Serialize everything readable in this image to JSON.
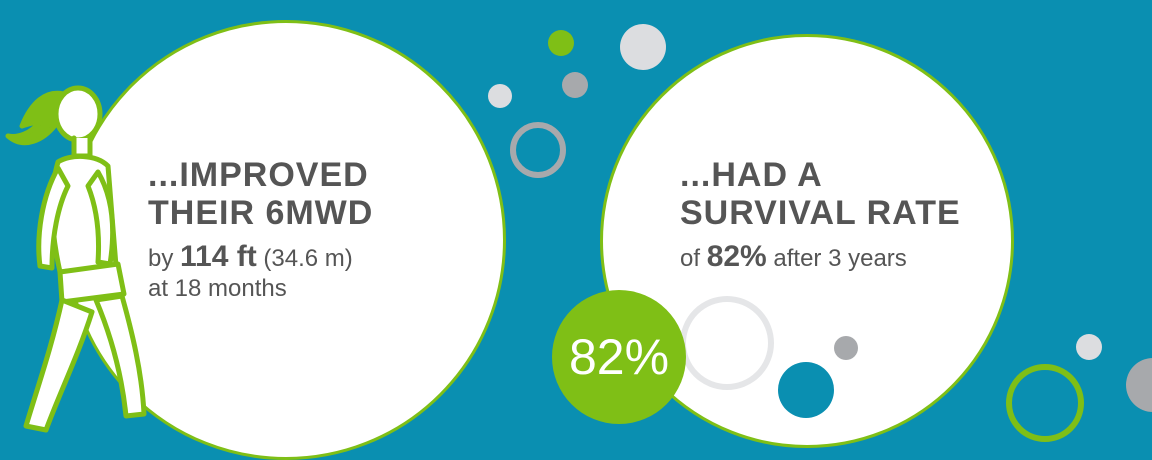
{
  "colors": {
    "background": "#0a8fb1",
    "accent_green": "#7fbf16",
    "bubble": "#ffffff",
    "text": "#555555",
    "grey_dot": "#a7a9ac",
    "light_grey_dot": "#dcdde0"
  },
  "left_card": {
    "heading_line1": "...IMPROVED",
    "heading_line2": "THEIR 6MWD",
    "sub_prefix": "by ",
    "sub_value": "114 ft",
    "sub_unit": " (34.6 m)",
    "sub_line2": "at 18 months",
    "icon": "walking-woman-icon"
  },
  "right_card": {
    "heading_line1": "...HAD A",
    "heading_line2": "SURVIVAL RATE",
    "sub_prefix": "of ",
    "sub_value": "82%",
    "sub_suffix": " after 3 years"
  },
  "badge": {
    "value": "82%"
  }
}
